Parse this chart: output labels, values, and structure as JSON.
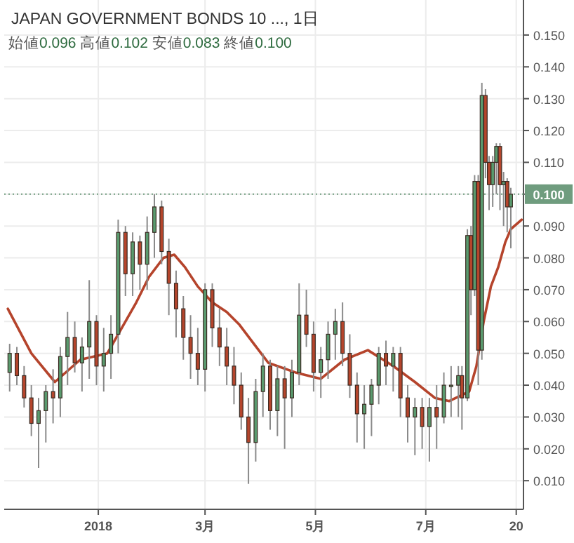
{
  "chart_data": {
    "type": "candlestick",
    "title": "JAPAN GOVERNMENT BONDS 10 ..., 1日",
    "subtitle": "始値0.096 高値0.102 安値0.083 終値0.100",
    "x": [
      "2017-11-13",
      "2017-11-17",
      "2017-11-21",
      "2017-11-25",
      "2017-11-29",
      "2017-12-03",
      "2017-12-07",
      "2017-12-11",
      "2017-12-15",
      "2017-12-19",
      "2017-12-23",
      "2017-12-27",
      "2017-12-31",
      "2018-01-04",
      "2018-01-08",
      "2018-01-12",
      "2018-01-16",
      "2018-01-20",
      "2018-01-24",
      "2018-01-28",
      "2018-02-01",
      "2018-02-05",
      "2018-02-09",
      "2018-02-13",
      "2018-02-17",
      "2018-02-21",
      "2018-02-25",
      "2018-03-01",
      "2018-03-05",
      "2018-03-09",
      "2018-03-13",
      "2018-03-17",
      "2018-03-21",
      "2018-03-25",
      "2018-03-29",
      "2018-04-02",
      "2018-04-06",
      "2018-04-10",
      "2018-04-14",
      "2018-04-18",
      "2018-04-22",
      "2018-04-26",
      "2018-04-30",
      "2018-05-04",
      "2018-05-08",
      "2018-05-12",
      "2018-05-16",
      "2018-05-20",
      "2018-05-24",
      "2018-05-28",
      "2018-06-01",
      "2018-06-05",
      "2018-06-09",
      "2018-06-13",
      "2018-06-17",
      "2018-06-21",
      "2018-06-25",
      "2018-06-29",
      "2018-07-03",
      "2018-07-07",
      "2018-07-11",
      "2018-07-15",
      "2018-07-19",
      "2018-07-21",
      "2018-07-24",
      "2018-07-26",
      "2018-07-28",
      "2018-07-30",
      "2018-08-01",
      "2018-08-03",
      "2018-08-05",
      "2018-08-07",
      "2018-08-09",
      "2018-08-11",
      "2018-08-13",
      "2018-08-15",
      "2018-08-17"
    ],
    "ohlc": [
      [
        0.044,
        0.053,
        0.038,
        0.05
      ],
      [
        0.05,
        0.052,
        0.04,
        0.043
      ],
      [
        0.043,
        0.046,
        0.033,
        0.036
      ],
      [
        0.036,
        0.04,
        0.024,
        0.028
      ],
      [
        0.028,
        0.036,
        0.014,
        0.032
      ],
      [
        0.032,
        0.04,
        0.022,
        0.038
      ],
      [
        0.038,
        0.045,
        0.028,
        0.036
      ],
      [
        0.036,
        0.052,
        0.03,
        0.049
      ],
      [
        0.049,
        0.063,
        0.04,
        0.055
      ],
      [
        0.055,
        0.06,
        0.044,
        0.047
      ],
      [
        0.047,
        0.055,
        0.038,
        0.052
      ],
      [
        0.052,
        0.073,
        0.042,
        0.06
      ],
      [
        0.06,
        0.062,
        0.04,
        0.046
      ],
      [
        0.046,
        0.058,
        0.038,
        0.05
      ],
      [
        0.05,
        0.062,
        0.042,
        0.056
      ],
      [
        0.056,
        0.092,
        0.05,
        0.088
      ],
      [
        0.088,
        0.09,
        0.068,
        0.075
      ],
      [
        0.075,
        0.088,
        0.068,
        0.085
      ],
      [
        0.085,
        0.087,
        0.07,
        0.078
      ],
      [
        0.078,
        0.093,
        0.07,
        0.088
      ],
      [
        0.088,
        0.1,
        0.08,
        0.096
      ],
      [
        0.096,
        0.098,
        0.078,
        0.082
      ],
      [
        0.082,
        0.086,
        0.062,
        0.072
      ],
      [
        0.072,
        0.076,
        0.055,
        0.064
      ],
      [
        0.064,
        0.068,
        0.048,
        0.055
      ],
      [
        0.055,
        0.062,
        0.042,
        0.05
      ],
      [
        0.05,
        0.058,
        0.04,
        0.045
      ],
      [
        0.045,
        0.072,
        0.038,
        0.07
      ],
      [
        0.07,
        0.072,
        0.052,
        0.058
      ],
      [
        0.058,
        0.064,
        0.046,
        0.052
      ],
      [
        0.052,
        0.058,
        0.04,
        0.046
      ],
      [
        0.046,
        0.052,
        0.034,
        0.04
      ],
      [
        0.04,
        0.044,
        0.026,
        0.03
      ],
      [
        0.03,
        0.036,
        0.009,
        0.022
      ],
      [
        0.022,
        0.042,
        0.016,
        0.038
      ],
      [
        0.038,
        0.05,
        0.03,
        0.046
      ],
      [
        0.046,
        0.048,
        0.026,
        0.032
      ],
      [
        0.032,
        0.046,
        0.024,
        0.042
      ],
      [
        0.042,
        0.046,
        0.02,
        0.036
      ],
      [
        0.036,
        0.048,
        0.03,
        0.044
      ],
      [
        0.044,
        0.072,
        0.04,
        0.062
      ],
      [
        0.062,
        0.07,
        0.052,
        0.056
      ],
      [
        0.056,
        0.06,
        0.038,
        0.044
      ],
      [
        0.044,
        0.052,
        0.036,
        0.048
      ],
      [
        0.048,
        0.06,
        0.042,
        0.056
      ],
      [
        0.056,
        0.064,
        0.048,
        0.06
      ],
      [
        0.06,
        0.066,
        0.046,
        0.05
      ],
      [
        0.05,
        0.056,
        0.036,
        0.04
      ],
      [
        0.04,
        0.044,
        0.022,
        0.031
      ],
      [
        0.031,
        0.04,
        0.02,
        0.034
      ],
      [
        0.034,
        0.042,
        0.024,
        0.04
      ],
      [
        0.04,
        0.052,
        0.034,
        0.05
      ],
      [
        0.05,
        0.054,
        0.04,
        0.046
      ],
      [
        0.046,
        0.052,
        0.038,
        0.05
      ],
      [
        0.05,
        0.052,
        0.03,
        0.036
      ],
      [
        0.036,
        0.04,
        0.022,
        0.03
      ],
      [
        0.03,
        0.036,
        0.018,
        0.033
      ],
      [
        0.033,
        0.036,
        0.02,
        0.027
      ],
      [
        0.027,
        0.036,
        0.016,
        0.033
      ],
      [
        0.033,
        0.04,
        0.02,
        0.03
      ],
      [
        0.03,
        0.044,
        0.028,
        0.04
      ],
      [
        0.04,
        0.046,
        0.03,
        0.04
      ],
      [
        0.04,
        0.046,
        0.03,
        0.043
      ],
      [
        0.043,
        0.046,
        0.026,
        0.036
      ],
      [
        0.036,
        0.089,
        0.035,
        0.087
      ],
      [
        0.087,
        0.09,
        0.062,
        0.07
      ],
      [
        0.07,
        0.106,
        0.068,
        0.104
      ],
      [
        0.104,
        0.106,
        0.04,
        0.051
      ],
      [
        0.051,
        0.135,
        0.048,
        0.131
      ],
      [
        0.131,
        0.133,
        0.105,
        0.11
      ],
      [
        0.11,
        0.112,
        0.095,
        0.103
      ],
      [
        0.103,
        0.112,
        0.096,
        0.11
      ],
      [
        0.11,
        0.116,
        0.1,
        0.115
      ],
      [
        0.115,
        0.116,
        0.095,
        0.103
      ],
      [
        0.103,
        0.107,
        0.09,
        0.104
      ],
      [
        0.104,
        0.105,
        0.088,
        0.096
      ],
      [
        0.096,
        0.102,
        0.083,
        0.1
      ]
    ],
    "series": [
      {
        "type": "line",
        "color": "#b5442c",
        "x": [
          "2017-11-12",
          "2017-11-25",
          "2017-12-08",
          "2017-12-22",
          "2018-01-06",
          "2018-01-14",
          "2018-01-22",
          "2018-01-29",
          "2018-02-06",
          "2018-02-12",
          "2018-02-18",
          "2018-02-25",
          "2018-03-05",
          "2018-03-13",
          "2018-03-20",
          "2018-03-28",
          "2018-04-05",
          "2018-04-20",
          "2018-05-04",
          "2018-05-17",
          "2018-05-30",
          "2018-06-13",
          "2018-06-25",
          "2018-07-06",
          "2018-07-14",
          "2018-07-25",
          "2018-07-29",
          "2018-08-02",
          "2018-08-06",
          "2018-08-10",
          "2018-08-14",
          "2018-08-17",
          "2018-08-23"
        ],
        "values": [
          0.064,
          0.05,
          0.041,
          0.048,
          0.05,
          0.058,
          0.066,
          0.074,
          0.08,
          0.081,
          0.077,
          0.071,
          0.066,
          0.063,
          0.059,
          0.053,
          0.047,
          0.044,
          0.042,
          0.048,
          0.051,
          0.046,
          0.041,
          0.036,
          0.035,
          0.038,
          0.046,
          0.06,
          0.071,
          0.077,
          0.085,
          0.089,
          0.092
        ]
      }
    ],
    "xlim": [
      "2017-11-10",
      "2018-08-24"
    ],
    "xticks": [
      {
        "value": "2018-01-01",
        "label": "2018"
      },
      {
        "value": "2018-03-01",
        "label": "3月"
      },
      {
        "value": "2018-05-01",
        "label": "5月"
      },
      {
        "value": "2018-07-01",
        "label": "7月"
      },
      {
        "value": "2018-08-20",
        "label": "20"
      }
    ],
    "ylim": [
      0.001,
      0.161
    ],
    "yticks": [
      {
        "value": 0.01,
        "label": "0.010"
      },
      {
        "value": 0.02,
        "label": "0.020"
      },
      {
        "value": 0.03,
        "label": "0.030"
      },
      {
        "value": 0.04,
        "label": "0.040"
      },
      {
        "value": 0.05,
        "label": "0.050"
      },
      {
        "value": 0.06,
        "label": "0.060"
      },
      {
        "value": 0.07,
        "label": "0.070"
      },
      {
        "value": 0.08,
        "label": "0.080"
      },
      {
        "value": 0.09,
        "label": "0.090"
      },
      {
        "value": 0.1,
        "label": "0.100"
      },
      {
        "value": 0.11,
        "label": "0.110"
      },
      {
        "value": 0.12,
        "label": "0.120"
      },
      {
        "value": 0.13,
        "label": "0.130"
      },
      {
        "value": 0.14,
        "label": "0.140"
      },
      {
        "value": 0.15,
        "label": "0.150"
      }
    ],
    "grid": true,
    "ref_lines": [
      {
        "axis": "y",
        "value": 0.1,
        "color": "#6f9c7e",
        "line_style": "dotted"
      }
    ]
  }
}
